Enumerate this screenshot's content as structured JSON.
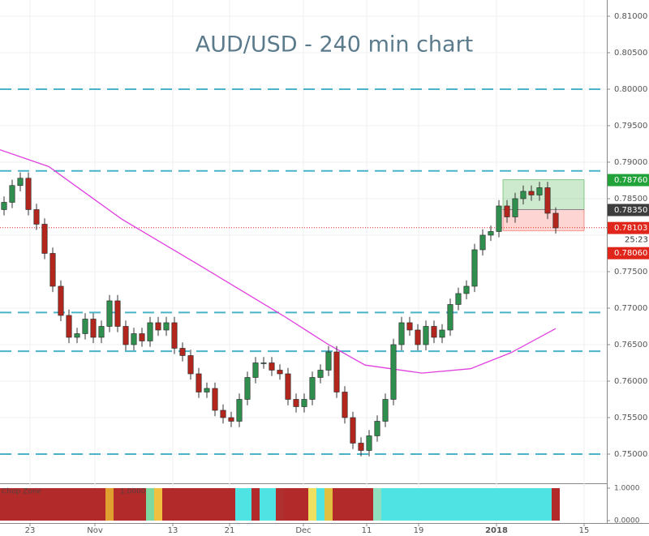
{
  "chart_data": {
    "type": "candlestick",
    "title": "AUD/USD - 240 min chart",
    "open": [
      0.7835,
      0.7845,
      0.7868,
      0.7878,
      0.7835,
      0.7815,
      0.7775,
      0.773,
      0.769,
      0.766,
      0.7665,
      0.7685,
      0.766,
      0.7675,
      0.771,
      0.7675,
      0.765,
      0.7665,
      0.7655,
      0.768,
      0.767,
      0.768,
      0.7645,
      0.7635,
      0.761,
      0.7585,
      0.759,
      0.756,
      0.755,
      0.7545,
      0.7575,
      0.7605,
      0.7625,
      0.7625,
      0.7615,
      0.761,
      0.7575,
      0.7565,
      0.7575,
      0.7605,
      0.7615,
      0.764,
      0.7585,
      0.755,
      0.7515,
      0.7505,
      0.7525,
      0.7545,
      0.7575,
      0.765,
      0.768,
      0.767,
      0.765,
      0.7675,
      0.766,
      0.767,
      0.7705,
      0.772,
      0.773,
      0.778,
      0.78,
      0.7805,
      0.784,
      0.7825,
      0.785,
      0.786,
      0.7855,
      0.7865,
      0.783
    ],
    "high": [
      0.7853,
      0.7876,
      0.7886,
      0.7886,
      0.7843,
      0.7823,
      0.7783,
      0.7738,
      0.7698,
      0.7673,
      0.7693,
      0.7693,
      0.7683,
      0.7718,
      0.7718,
      0.7683,
      0.7673,
      0.7673,
      0.7688,
      0.7688,
      0.7688,
      0.7688,
      0.7653,
      0.7643,
      0.7618,
      0.7598,
      0.7598,
      0.7568,
      0.7558,
      0.7583,
      0.7613,
      0.7633,
      0.7633,
      0.7633,
      0.7623,
      0.7618,
      0.7583,
      0.7583,
      0.7613,
      0.7623,
      0.7648,
      0.7648,
      0.7593,
      0.7558,
      0.7523,
      0.7533,
      0.7553,
      0.7583,
      0.7658,
      0.7688,
      0.7688,
      0.7678,
      0.7683,
      0.7683,
      0.7678,
      0.7713,
      0.7728,
      0.7738,
      0.7788,
      0.7808,
      0.7813,
      0.7848,
      0.7848,
      0.7858,
      0.7868,
      0.7868,
      0.7873,
      0.7873,
      0.7838
    ],
    "low": [
      0.7827,
      0.7837,
      0.786,
      0.7827,
      0.7807,
      0.7767,
      0.7722,
      0.7682,
      0.7652,
      0.7652,
      0.7657,
      0.7652,
      0.7652,
      0.7667,
      0.7667,
      0.7642,
      0.7642,
      0.7647,
      0.7647,
      0.7662,
      0.7662,
      0.7637,
      0.7627,
      0.7602,
      0.7577,
      0.7577,
      0.7552,
      0.7542,
      0.7537,
      0.7537,
      0.7567,
      0.7597,
      0.7617,
      0.7607,
      0.7602,
      0.7567,
      0.7557,
      0.7557,
      0.7567,
      0.7597,
      0.7607,
      0.7577,
      0.7542,
      0.7507,
      0.7497,
      0.7497,
      0.7517,
      0.7537,
      0.7567,
      0.7642,
      0.7662,
      0.7642,
      0.7642,
      0.7652,
      0.7652,
      0.7662,
      0.7697,
      0.7712,
      0.7722,
      0.7772,
      0.7792,
      0.7797,
      0.7817,
      0.7817,
      0.7842,
      0.7847,
      0.7847,
      0.7822,
      0.7802
    ],
    "close": [
      0.7845,
      0.7868,
      0.7878,
      0.7835,
      0.7815,
      0.7775,
      0.773,
      0.769,
      0.766,
      0.7665,
      0.7685,
      0.766,
      0.7675,
      0.771,
      0.7675,
      0.765,
      0.7665,
      0.7655,
      0.768,
      0.767,
      0.768,
      0.7645,
      0.7635,
      0.761,
      0.7585,
      0.759,
      0.756,
      0.755,
      0.7545,
      0.7575,
      0.7605,
      0.7625,
      0.7625,
      0.7615,
      0.761,
      0.7575,
      0.7565,
      0.7575,
      0.7605,
      0.7615,
      0.764,
      0.7585,
      0.755,
      0.7515,
      0.7505,
      0.7525,
      0.7545,
      0.7575,
      0.765,
      0.768,
      0.767,
      0.765,
      0.7675,
      0.766,
      0.767,
      0.7705,
      0.772,
      0.773,
      0.778,
      0.78,
      0.7805,
      0.784,
      0.7825,
      0.785,
      0.786,
      0.7855,
      0.7865,
      0.783,
      0.781
    ],
    "up_color": "#2f8f4e",
    "down_color": "#b3261e",
    "xlim": [
      -0.5,
      74.3
    ],
    "xticks": [
      {
        "value": 3.2,
        "label": "23"
      },
      {
        "value": 11.2,
        "label": "Nov"
      },
      {
        "value": 20.8,
        "label": "13"
      },
      {
        "value": 27.8,
        "label": "21"
      },
      {
        "value": 36.9,
        "label": "Dec"
      },
      {
        "value": 44.7,
        "label": "11"
      },
      {
        "value": 51.1,
        "label": "19"
      },
      {
        "value": 60.7,
        "label": "2018"
      },
      {
        "value": 71.5,
        "label": "15"
      }
    ],
    "ylim": [
      0.74611,
      0.81222
    ],
    "yticks": [
      {
        "value": 0.75,
        "label": "0.75000"
      },
      {
        "value": 0.755,
        "label": "0.75500"
      },
      {
        "value": 0.76,
        "label": "0.76000"
      },
      {
        "value": 0.765,
        "label": "0.76500"
      },
      {
        "value": 0.77,
        "label": "0.77000"
      },
      {
        "value": 0.775,
        "label": "0.77500"
      },
      {
        "value": 0.78,
        "label": "0.78000"
      },
      {
        "value": 0.785,
        "label": "0.78500"
      },
      {
        "value": 0.79,
        "label": "0.79000"
      },
      {
        "value": 0.795,
        "label": "0.79500"
      },
      {
        "value": 0.8,
        "label": "0.80000"
      },
      {
        "value": 0.805,
        "label": "0.80500"
      },
      {
        "value": 0.81,
        "label": "0.81000"
      }
    ],
    "grid": true,
    "levels": [
      0.8,
      0.7888,
      0.7694,
      0.7641,
      0.75
    ],
    "level_color": "#4ab3c9",
    "moving_average": {
      "color": "#e040e0",
      "x": [
        -0.5,
        5.5,
        9.5,
        14.5,
        24.5,
        34.5,
        40,
        44.5,
        51.5,
        57.5,
        62.5,
        68
      ],
      "values": [
        0.7917,
        0.7894,
        0.7862,
        0.7822,
        0.7756,
        0.7689,
        0.765,
        0.7622,
        0.7611,
        0.7617,
        0.7639,
        0.7672
      ]
    },
    "price_labels": [
      {
        "value": 0.7876,
        "label": "0.78760",
        "color": "#22a33a"
      },
      {
        "value": 0.7835,
        "label": "0.78350",
        "color": "#3d3d3d"
      },
      {
        "value": 0.78103,
        "label": "0.78103",
        "color": "#e0261b",
        "countdown": "25:23"
      },
      {
        "value": 0.7806,
        "label": "0.78060",
        "color": "#e0261b"
      }
    ],
    "position_x": [
      61.5,
      71.5
    ],
    "indicator": {
      "name": "Chop Zone",
      "value_label": "1.0000",
      "value": 1,
      "ylim": [
        0,
        1.1
      ],
      "yticks": [
        {
          "value": 1,
          "label": "1.0000"
        },
        {
          "value": 0,
          "label": "0.0000"
        }
      ],
      "colors": [
        "#b22a2a",
        "#b22a2a",
        "#b22a2a",
        "#b22a2a",
        "#b22a2a",
        "#b22a2a",
        "#b22a2a",
        "#b22a2a",
        "#b22a2a",
        "#b22a2a",
        "#b22a2a",
        "#b22a2a",
        "#b22a2a",
        "#e0a030",
        "#b22a2a",
        "#b22a2a",
        "#b22a2a",
        "#b22a2a",
        "#7fd7a0",
        "#f0c040",
        "#b22a2a",
        "#b22a2a",
        "#b22a2a",
        "#b22a2a",
        "#b22a2a",
        "#b22a2a",
        "#b22a2a",
        "#b22a2a",
        "#b22a2a",
        "#4fe3e3",
        "#4fe3e3",
        "#b22a2a",
        "#4fe3e3",
        "#4fe3e3",
        "#b03030",
        "#b22a2a",
        "#b22a2a",
        "#b22a2a",
        "#f0e060",
        "#4fe3e3",
        "#e0c040",
        "#b22a2a",
        "#b22a2a",
        "#b22a2a",
        "#b22a2a",
        "#b22a2a",
        "#90e0c0",
        "#4fe3e3",
        "#4fe3e3",
        "#4fe3e3",
        "#4fe3e3",
        "#4fe3e3",
        "#4fe3e3",
        "#4fe3e3",
        "#4fe3e3",
        "#4fe3e3",
        "#4fe3e3",
        "#4fe3e3",
        "#4fe3e3",
        "#4fe3e3",
        "#4fe3e3",
        "#4fe3e3",
        "#4fe3e3",
        "#4fe3e3",
        "#4fe3e3",
        "#4fe3e3",
        "#4fe3e3",
        "#4fe3e3",
        "#b22a2a"
      ]
    }
  }
}
